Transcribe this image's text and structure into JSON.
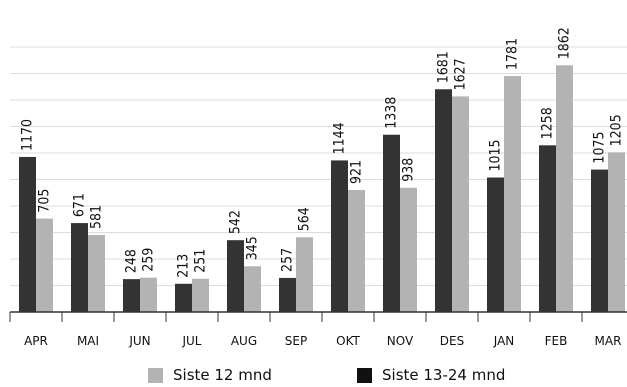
{
  "chart_data": {
    "type": "bar",
    "categories": [
      "APR",
      "MAI",
      "JUN",
      "JUL",
      "AUG",
      "SEP",
      "OKT",
      "NOV",
      "DES",
      "JAN",
      "FEB",
      "MAR"
    ],
    "series": [
      {
        "name": "Siste 13-24 mnd",
        "color": "#333333",
        "values": [
          1170,
          671,
          248,
          213,
          542,
          257,
          1144,
          1338,
          1681,
          1015,
          1258,
          1075
        ]
      },
      {
        "name": "Siste 12 mnd",
        "color": "#b3b3b3",
        "values": [
          705,
          581,
          259,
          251,
          345,
          564,
          921,
          938,
          1627,
          1781,
          1862,
          1205
        ]
      }
    ],
    "ylim": [
      0,
      2000
    ],
    "grid": true,
    "legend_position": "bottom",
    "data_labels": "rotated"
  },
  "legend": {
    "items": [
      {
        "label": "Siste 12 mnd",
        "color": "#b3b3b3"
      },
      {
        "label": "Siste 13-24 mnd",
        "color": "#111111"
      }
    ]
  }
}
